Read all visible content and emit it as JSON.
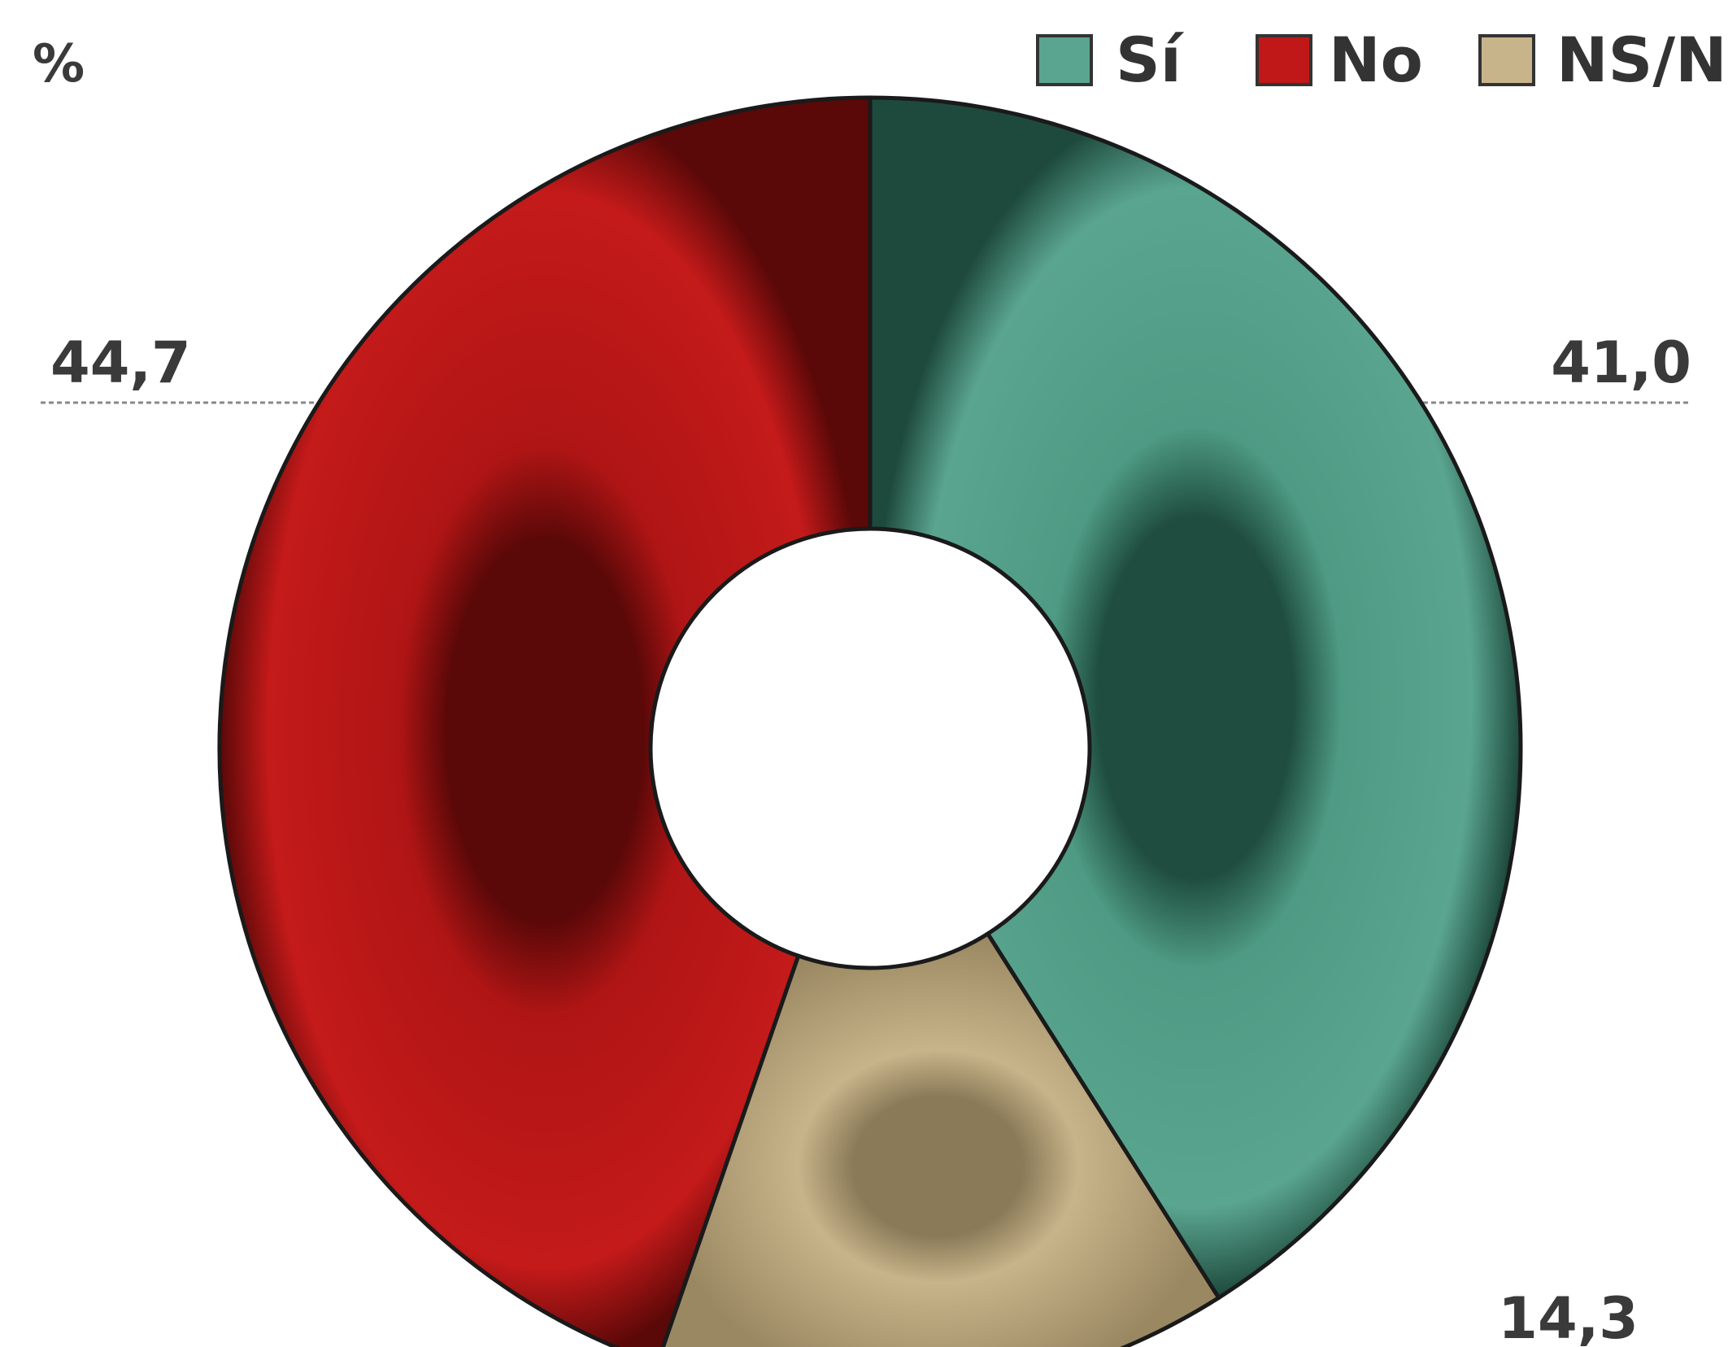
{
  "chart_data": {
    "type": "pie",
    "style": "donut",
    "unit_label": "%",
    "legend_position": "top-right",
    "series": [
      {
        "name": "Sí",
        "value": 41.0,
        "value_label": "41,0",
        "color": "#5aa58f"
      },
      {
        "name": "No",
        "value": 44.7,
        "value_label": "44,7",
        "color": "#c01818"
      },
      {
        "name": "NS/NC",
        "value": 14.3,
        "value_label": "14,3",
        "color": "#c8b48a"
      }
    ]
  }
}
